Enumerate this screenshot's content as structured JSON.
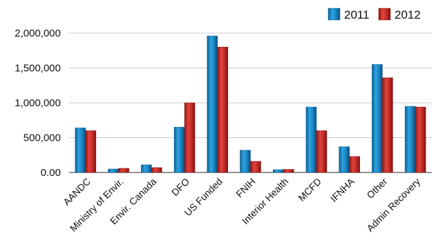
{
  "chart_data": {
    "type": "bar",
    "categories": [
      "AANDC",
      "Ministry of Envir.",
      "Envir. Canada",
      "DFO",
      "US Funded",
      "FNIH",
      "Interior Health",
      "MCFD",
      "IFNHA",
      "Other",
      "Admin Recovery"
    ],
    "series": [
      {
        "name": "2011",
        "color": "#1b86c4",
        "values": [
          640000,
          50000,
          110000,
          650000,
          1960000,
          320000,
          40000,
          940000,
          370000,
          1550000,
          950000
        ]
      },
      {
        "name": "2012",
        "color": "#c62d2a",
        "values": [
          600000,
          60000,
          70000,
          1000000,
          1800000,
          160000,
          45000,
          600000,
          230000,
          1360000,
          940000
        ]
      }
    ],
    "yticks": [
      "0.00",
      "500,000",
      "1,000,000",
      "1,500,000",
      "2,000,000"
    ],
    "ytick_values": [
      0,
      500000,
      1000000,
      1500000,
      2000000
    ],
    "ylim": [
      0,
      2000000
    ],
    "grid": true,
    "legend_position": "top-right",
    "title": "",
    "xlabel": "",
    "ylabel": ""
  }
}
